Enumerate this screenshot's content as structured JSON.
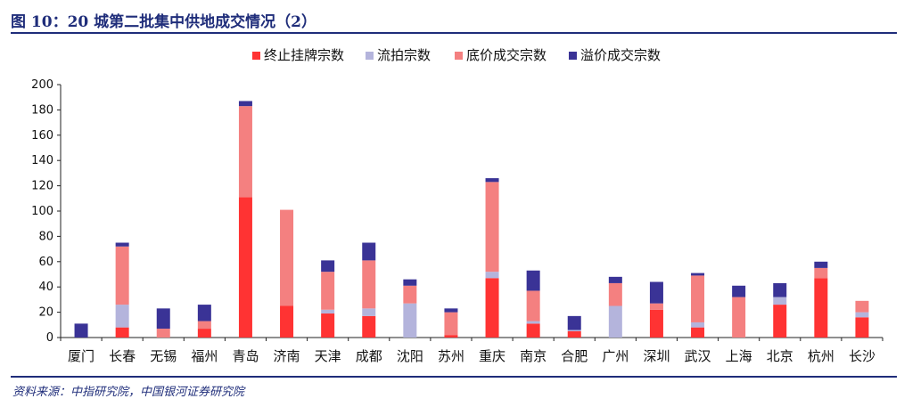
{
  "figure": {
    "title": "图 10：20 城第二批集中供地成交情况（2）",
    "source": "资料来源：中指研究院，中国银河证券研究院"
  },
  "colors": {
    "terminated": "#ff3333",
    "failed": "#b4b4dc",
    "base_price": "#f48080",
    "premium": "#3a3396",
    "title": "#1f2d7a"
  },
  "chart_data": {
    "type": "bar",
    "stacked": true,
    "categories": [
      "厦门",
      "长春",
      "无锡",
      "福州",
      "青岛",
      "济南",
      "天津",
      "成都",
      "沈阳",
      "苏州",
      "重庆",
      "南京",
      "合肥",
      "广州",
      "深圳",
      "武汉",
      "上海",
      "北京",
      "杭州",
      "长沙"
    ],
    "series": [
      {
        "name": "终止挂牌宗数",
        "color": "#ff3333",
        "values": [
          0,
          8,
          0,
          7,
          111,
          25,
          19,
          17,
          0,
          2,
          47,
          11,
          5,
          0,
          22,
          8,
          0,
          26,
          47,
          16
        ]
      },
      {
        "name": "流拍宗数",
        "color": "#b4b4dc",
        "values": [
          0,
          18,
          0,
          0,
          0,
          0,
          3,
          6,
          27,
          0,
          5,
          2,
          1,
          25,
          0,
          4,
          0,
          6,
          0,
          4
        ]
      },
      {
        "name": "底价成交宗数",
        "color": "#f48080",
        "values": [
          0,
          46,
          7,
          6,
          72,
          76,
          30,
          38,
          14,
          18,
          71,
          24,
          0,
          18,
          5,
          37,
          32,
          0,
          8,
          9
        ]
      },
      {
        "name": "溢价成交宗数",
        "color": "#3a3396",
        "values": [
          11,
          3,
          16,
          13,
          4,
          0,
          9,
          14,
          5,
          3,
          3,
          16,
          11,
          5,
          17,
          2,
          9,
          11,
          5,
          0
        ]
      }
    ],
    "ylim": [
      0,
      200
    ],
    "yticks": [
      "0",
      "20",
      "40",
      "60",
      "80",
      "100",
      "120",
      "140",
      "160",
      "180",
      "200"
    ],
    "legend_position": "top",
    "grid": false
  }
}
